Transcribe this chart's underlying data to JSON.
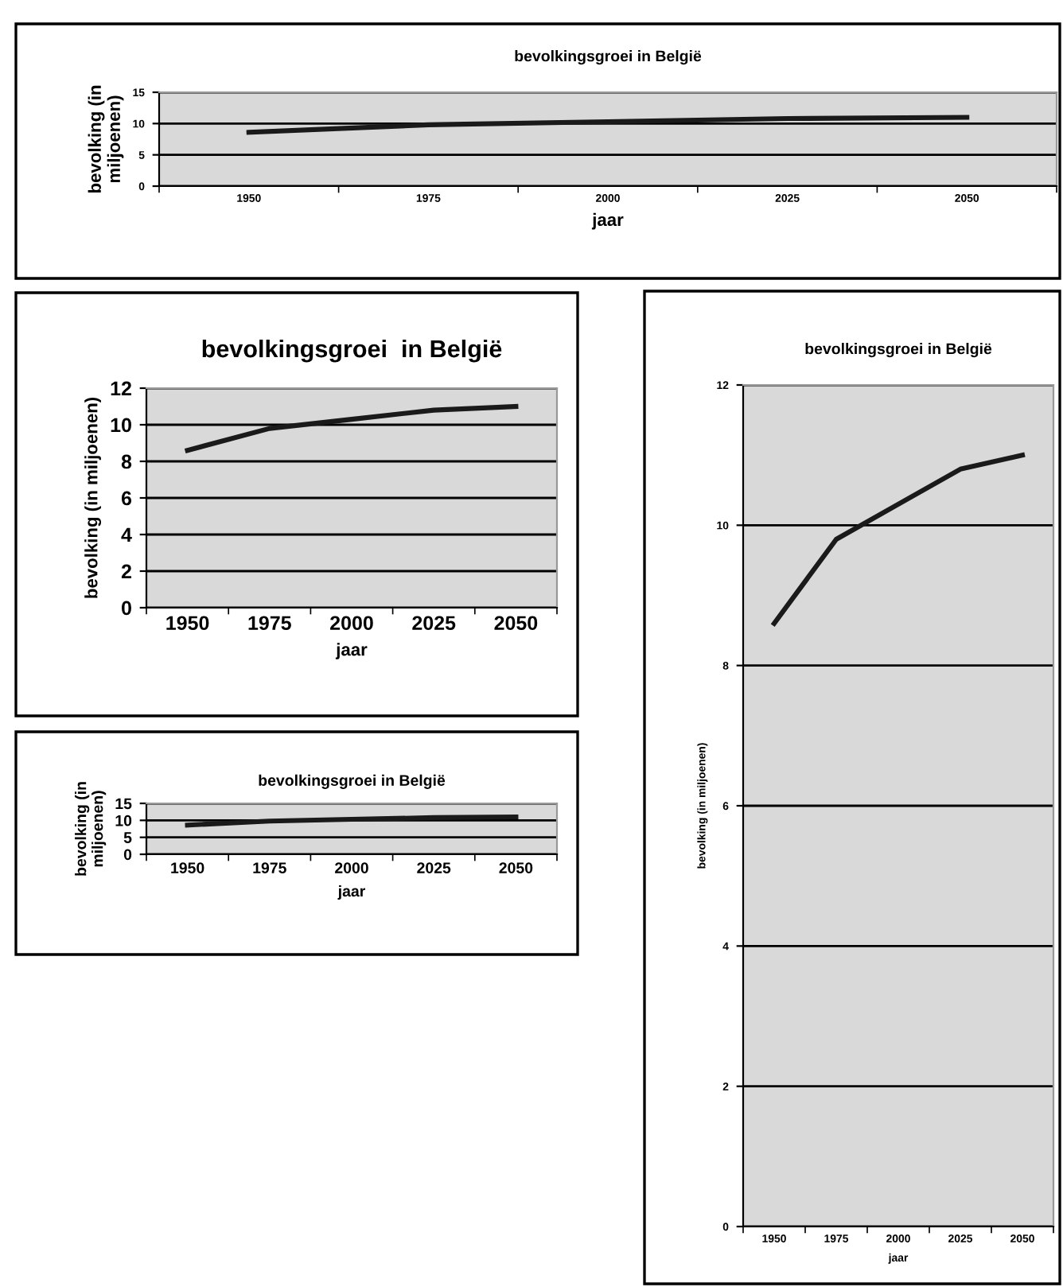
{
  "chart_data": [
    {
      "type": "line",
      "title": "bevolkingsgroei in België",
      "xlabel": "jaar",
      "ylabel": "bevolking (in miljoenen)",
      "categories": [
        "1950",
        "1975",
        "2000",
        "2025",
        "2050"
      ],
      "series": [
        {
          "color": "#1a1a1a",
          "values": [
            8.6,
            9.8,
            10.3,
            10.8,
            11.0
          ]
        }
      ],
      "ylim": [
        0,
        15
      ],
      "yticks": [
        0,
        5,
        10,
        15
      ],
      "grid": "y",
      "marker": "none",
      "line_style": "solid"
    },
    {
      "type": "line",
      "title": "bevolkingsgroei  in België",
      "xlabel": "jaar",
      "ylabel": "bevolking (in miljoenen)",
      "categories": [
        "1950",
        "1975",
        "2000",
        "2025",
        "2050"
      ],
      "series": [
        {
          "color": "#1a1a1a",
          "values": [
            8.6,
            9.8,
            10.3,
            10.8,
            11.0
          ]
        }
      ],
      "ylim": [
        0,
        12
      ],
      "yticks": [
        0,
        2,
        4,
        6,
        8,
        10,
        12
      ],
      "grid": "y",
      "marker": "none",
      "line_style": "solid"
    },
    {
      "type": "line",
      "title": "bevolkingsgroei in België",
      "xlabel": "jaar",
      "ylabel": "bevolking (in miljoenen)",
      "categories": [
        "1950",
        "1975",
        "2000",
        "2025",
        "2050"
      ],
      "series": [
        {
          "color": "#1a1a1a",
          "values": [
            8.6,
            9.8,
            10.3,
            10.8,
            11.0
          ]
        }
      ],
      "ylim": [
        0,
        15
      ],
      "yticks": [
        0,
        5,
        10,
        15
      ],
      "grid": "y",
      "marker": "none",
      "line_style": "solid"
    },
    {
      "type": "line",
      "title": "bevolkingsgroei in België",
      "xlabel": "jaar",
      "ylabel": "bevolking (in miljoenen)",
      "categories": [
        "1950",
        "1975",
        "2000",
        "2025",
        "2050"
      ],
      "series": [
        {
          "color": "#1a1a1a",
          "values": [
            8.6,
            9.8,
            10.3,
            10.8,
            11.0
          ]
        }
      ],
      "ylim": [
        0,
        12
      ],
      "yticks": [
        0,
        2,
        4,
        6,
        8,
        10,
        12
      ],
      "grid": "y",
      "marker": "none",
      "line_style": "solid"
    }
  ]
}
